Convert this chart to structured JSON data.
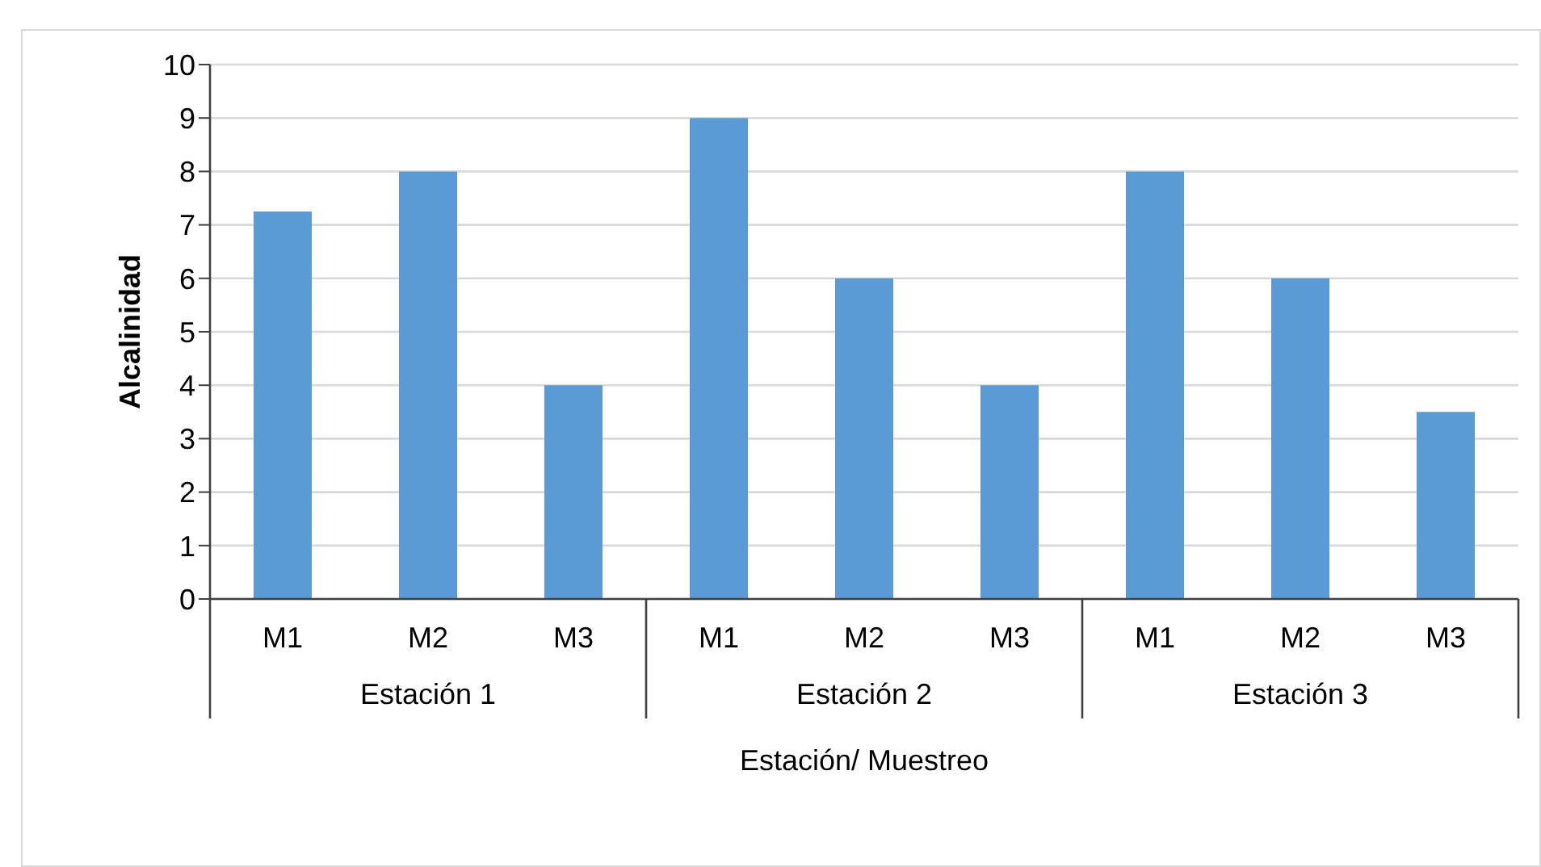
{
  "chart_data": {
    "type": "bar",
    "xlabel": "Estación/ Muestreo",
    "ylabel": "Alcalinidad",
    "categories": [
      "M1",
      "M2",
      "M3",
      "M1",
      "M2",
      "M3",
      "M1",
      "M2",
      "M3"
    ],
    "values": [
      7.25,
      8,
      4,
      9,
      6,
      4,
      8,
      6,
      3.5
    ],
    "color": "#5b9bd5",
    "ylim": [
      0,
      10
    ],
    "yticks": [
      0,
      1,
      2,
      3,
      4,
      5,
      6,
      7,
      8,
      9,
      10
    ],
    "grid": "y",
    "annotations": [
      "Estación 1",
      "Estación 2",
      "Estación 3"
    ]
  }
}
